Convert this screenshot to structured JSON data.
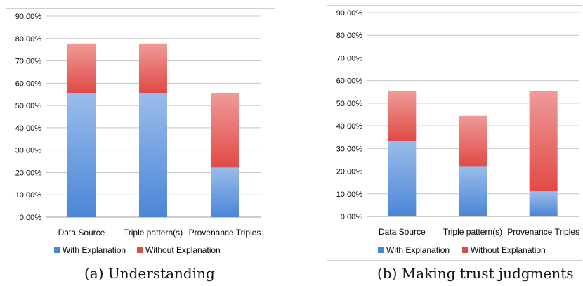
{
  "charts": [
    {
      "caption": "(a) Understanding",
      "chart_data": {
        "type": "bar",
        "stacked": true,
        "categories": [
          "Data Source",
          "Triple pattern(s)",
          "Provenance Triples"
        ],
        "series": [
          {
            "name": "With Explanation",
            "values": [
              55.56,
              55.56,
              22.22
            ],
            "color": "#4a86d8"
          },
          {
            "name": "Without Explanation",
            "values": [
              22.22,
              22.22,
              33.33
            ],
            "color": "#e04a45"
          }
        ],
        "ylim": [
          0,
          90
        ],
        "yticks": [
          "0.00%",
          "10.00%",
          "20.00%",
          "30.00%",
          "40.00%",
          "50.00%",
          "60.00%",
          "70.00%",
          "80.00%",
          "90.00%"
        ],
        "grid": true,
        "legend": "bottom"
      }
    },
    {
      "caption": "(b) Making trust judgments",
      "chart_data": {
        "type": "bar",
        "stacked": true,
        "categories": [
          "Data Source",
          "Triple pattern(s)",
          "Provenance Triples"
        ],
        "series": [
          {
            "name": "With Explanation",
            "values": [
              33.33,
              22.22,
              11.11
            ],
            "color": "#4a86d8"
          },
          {
            "name": "Without Explanation",
            "values": [
              22.22,
              22.22,
              44.44
            ],
            "color": "#e04a45"
          }
        ],
        "ylim": [
          0,
          90
        ],
        "yticks": [
          "0.00%",
          "10.00%",
          "20.00%",
          "30.00%",
          "40.00%",
          "50.00%",
          "60.00%",
          "70.00%",
          "80.00%",
          "90.00%"
        ],
        "grid": true,
        "legend": "bottom"
      }
    }
  ]
}
